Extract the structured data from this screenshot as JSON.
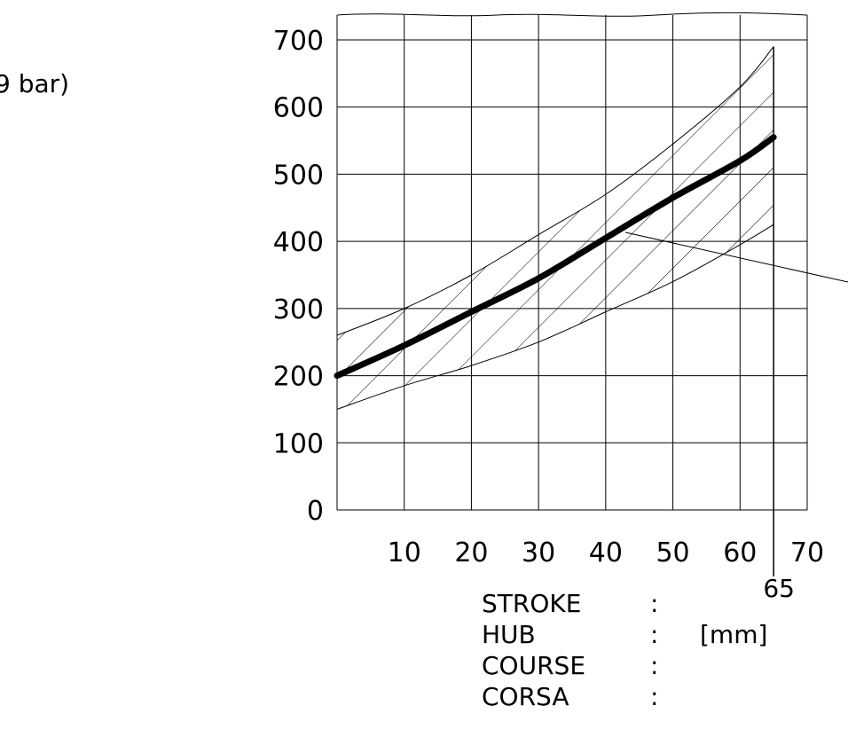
{
  "chart_data": {
    "type": "line",
    "fragment_label": "9 bar)",
    "y_ticks": [
      "0",
      "100",
      "200",
      "300",
      "400",
      "500",
      "600",
      "700"
    ],
    "x_ticks": [
      "10",
      "20",
      "30",
      "40",
      "50",
      "60",
      "70"
    ],
    "ylim": [
      0,
      700
    ],
    "xlim": [
      0,
      70
    ],
    "grid": true,
    "marker": {
      "x": 65,
      "label": "65"
    },
    "series": [
      {
        "role": "nominal",
        "x": [
          0,
          10,
          20,
          30,
          40,
          50,
          60,
          65
        ],
        "y": [
          200,
          245,
          295,
          345,
          405,
          465,
          520,
          555
        ]
      },
      {
        "role": "upper-bound",
        "x": [
          0,
          10,
          20,
          30,
          40,
          50,
          60,
          65
        ],
        "y": [
          260,
          300,
          350,
          410,
          470,
          545,
          630,
          690
        ]
      },
      {
        "role": "lower-bound",
        "x": [
          0,
          10,
          20,
          30,
          40,
          50,
          60,
          65
        ],
        "y": [
          150,
          185,
          215,
          250,
          295,
          340,
          395,
          425
        ]
      }
    ],
    "xlabel_rows": [
      {
        "name": "STROKE",
        "sep": ":",
        "value": ""
      },
      {
        "name": "HUB",
        "sep": ":",
        "value": "[mm]"
      },
      {
        "name": "COURSE",
        "sep": ":",
        "value": ""
      },
      {
        "name": "CORSA",
        "sep": ":",
        "value": ""
      }
    ]
  }
}
